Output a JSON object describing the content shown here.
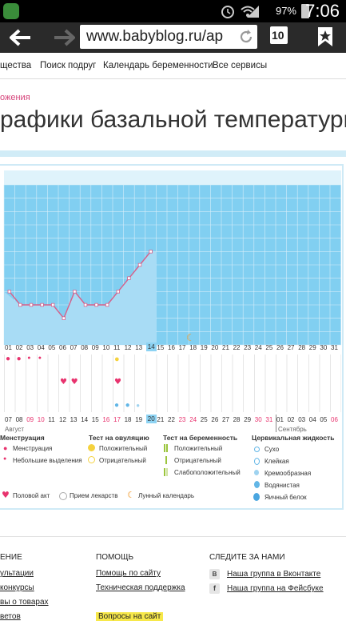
{
  "status": {
    "battery": "97%",
    "time": "7:06"
  },
  "browser": {
    "url": "www.babyblog.ru/ap",
    "tabs_count": "10"
  },
  "nav": [
    "щества",
    "Поиск подруг",
    "Календарь беременности",
    "Все сервисы"
  ],
  "breadcrumb": "ожения",
  "page_title": "рафики базальной температуры",
  "chart_data": {
    "type": "line",
    "x": [
      "01",
      "02",
      "03",
      "04",
      "05",
      "06",
      "07",
      "08",
      "09",
      "10",
      "11",
      "12",
      "13",
      "14"
    ],
    "values": [
      36.8,
      36.7,
      36.7,
      36.7,
      36.7,
      36.6,
      36.8,
      36.7,
      36.7,
      36.7,
      36.8,
      36.9,
      37.0,
      37.1
    ],
    "ylim": [
      36.4,
      37.6
    ],
    "grid": true
  },
  "cycle_days": [
    "01",
    "02",
    "03",
    "04",
    "05",
    "06",
    "07",
    "08",
    "09",
    "10",
    "11",
    "12",
    "13",
    "14",
    "15",
    "16",
    "17",
    "18",
    "19",
    "20",
    "21",
    "22",
    "23",
    "24",
    "25",
    "26",
    "27",
    "28",
    "29",
    "30",
    "31"
  ],
  "current_day": "14",
  "dates": [
    "07",
    "08",
    "09",
    "10",
    "11",
    "12",
    "13",
    "14",
    "15",
    "16",
    "17",
    "18",
    "19",
    "20",
    "21",
    "22",
    "23",
    "24",
    "25",
    "26",
    "27",
    "28",
    "29",
    "30",
    "31",
    "01",
    "02",
    "03",
    "04",
    "05",
    "06"
  ],
  "red_dates": [
    "09",
    "10",
    "16",
    "17",
    "23",
    "24",
    "30",
    "31",
    "06"
  ],
  "current_date": "20",
  "month_left": "Август",
  "month_right": "Сентябрь",
  "legend": {
    "menstruation": {
      "title": "Менструация",
      "items": [
        "Менструация",
        "Небольшие выделения"
      ]
    },
    "ovulation": {
      "title": "Тест на овуляцию",
      "items": [
        "Положительный",
        "Отрицательный"
      ]
    },
    "pregnancy": {
      "title": "Тест на беременность",
      "items": [
        "Положительный",
        "Отрицательный",
        "Слабоположительный"
      ]
    },
    "cervical": {
      "title": "Цервикальная жидкость",
      "items": [
        "Сухо",
        "Клейкая",
        "Кремообразная",
        "Водянистая",
        "Яичный белок"
      ]
    },
    "extra": [
      "Половой акт",
      "Прием лекарств",
      "Лунный календарь"
    ]
  },
  "footer": {
    "col1": {
      "title": "ЕНИЕ",
      "items": [
        "ультации",
        "конкурсы",
        "вы о товарах",
        "ветов"
      ]
    },
    "col2": {
      "title": "ПОМОЩЬ",
      "items": [
        "Помощь по сайту",
        "Техническая поддержка",
        "Вопросы на сайт"
      ]
    },
    "col3": {
      "title": "СЛЕДИТЕ ЗА НАМИ",
      "items": [
        "Наша группа в Вконтакте",
        "Наша группа на Фейсбуке"
      ]
    }
  },
  "colors": {
    "chart_fill": "#a8dcf5",
    "chart_bg": "#81cff1",
    "line": "#d8608a",
    "pink": "#e8336e",
    "yellow": "#f5d23e"
  }
}
